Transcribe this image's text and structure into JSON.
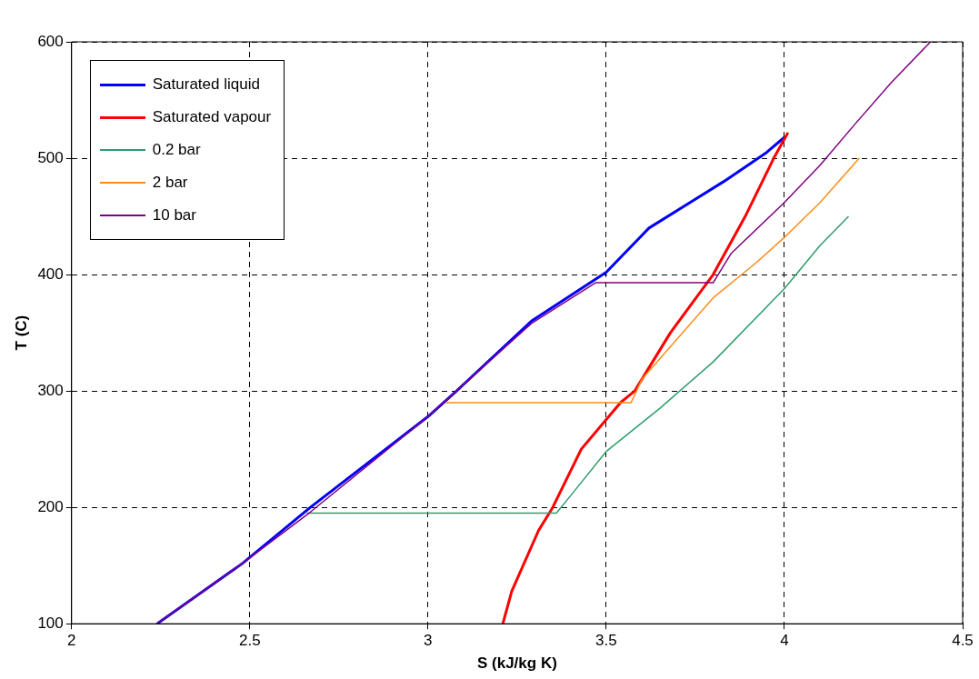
{
  "chart_data": {
    "type": "line",
    "xlabel": "S (kJ/kg K)",
    "ylabel": "T (C)",
    "xlim": [
      2,
      4.5
    ],
    "ylim": [
      100,
      600
    ],
    "xticks": [
      2,
      2.5,
      3,
      3.5,
      4,
      4.5
    ],
    "yticks": [
      100,
      200,
      300,
      400,
      500,
      600
    ],
    "grid": true,
    "legend": "top left",
    "marker": "none",
    "line_style": "solid",
    "series": [
      {
        "name": "Saturated liquid",
        "color": "#0000ff",
        "x": [
          2.24,
          2.48,
          2.67,
          3.0,
          3.08,
          3.29,
          3.5,
          3.62,
          3.83,
          3.95,
          4.0
        ],
        "values": [
          100,
          152,
          200,
          278,
          300,
          360,
          402,
          440,
          480,
          505,
          518
        ]
      },
      {
        "name": "Saturated vapour",
        "color": "#ff0000",
        "x": [
          3.21,
          3.235,
          3.31,
          3.35,
          3.43,
          3.54,
          3.58,
          3.68,
          3.8,
          3.89,
          3.97,
          4.01
        ],
        "values": [
          100,
          128,
          180,
          200,
          250,
          290,
          300,
          350,
          400,
          450,
          500,
          522
        ]
      },
      {
        "name": "0.2 bar",
        "color": "#2e9e6b",
        "x": [
          2.66,
          3.36,
          3.4,
          3.5,
          3.65,
          3.8,
          4.0,
          4.1,
          4.18
        ],
        "values": [
          195,
          195,
          210,
          248,
          285,
          325,
          388,
          425,
          450
        ]
      },
      {
        "name": "2 bar",
        "color": "#ff8c1a",
        "x": [
          3.05,
          3.57,
          3.6,
          3.7,
          3.8,
          3.92,
          4.0,
          4.1,
          4.21
        ],
        "values": [
          290,
          290,
          310,
          345,
          380,
          410,
          432,
          462,
          500
        ]
      },
      {
        "name": "10 bar",
        "color": "#800080",
        "x": [
          2.24,
          2.48,
          2.67,
          3.0,
          3.29,
          3.47,
          3.8,
          3.85,
          4.0,
          4.1,
          4.2,
          4.3,
          4.41
        ],
        "values": [
          100,
          152,
          196,
          278,
          358,
          393,
          393,
          418,
          462,
          494,
          530,
          565,
          600
        ]
      }
    ]
  }
}
